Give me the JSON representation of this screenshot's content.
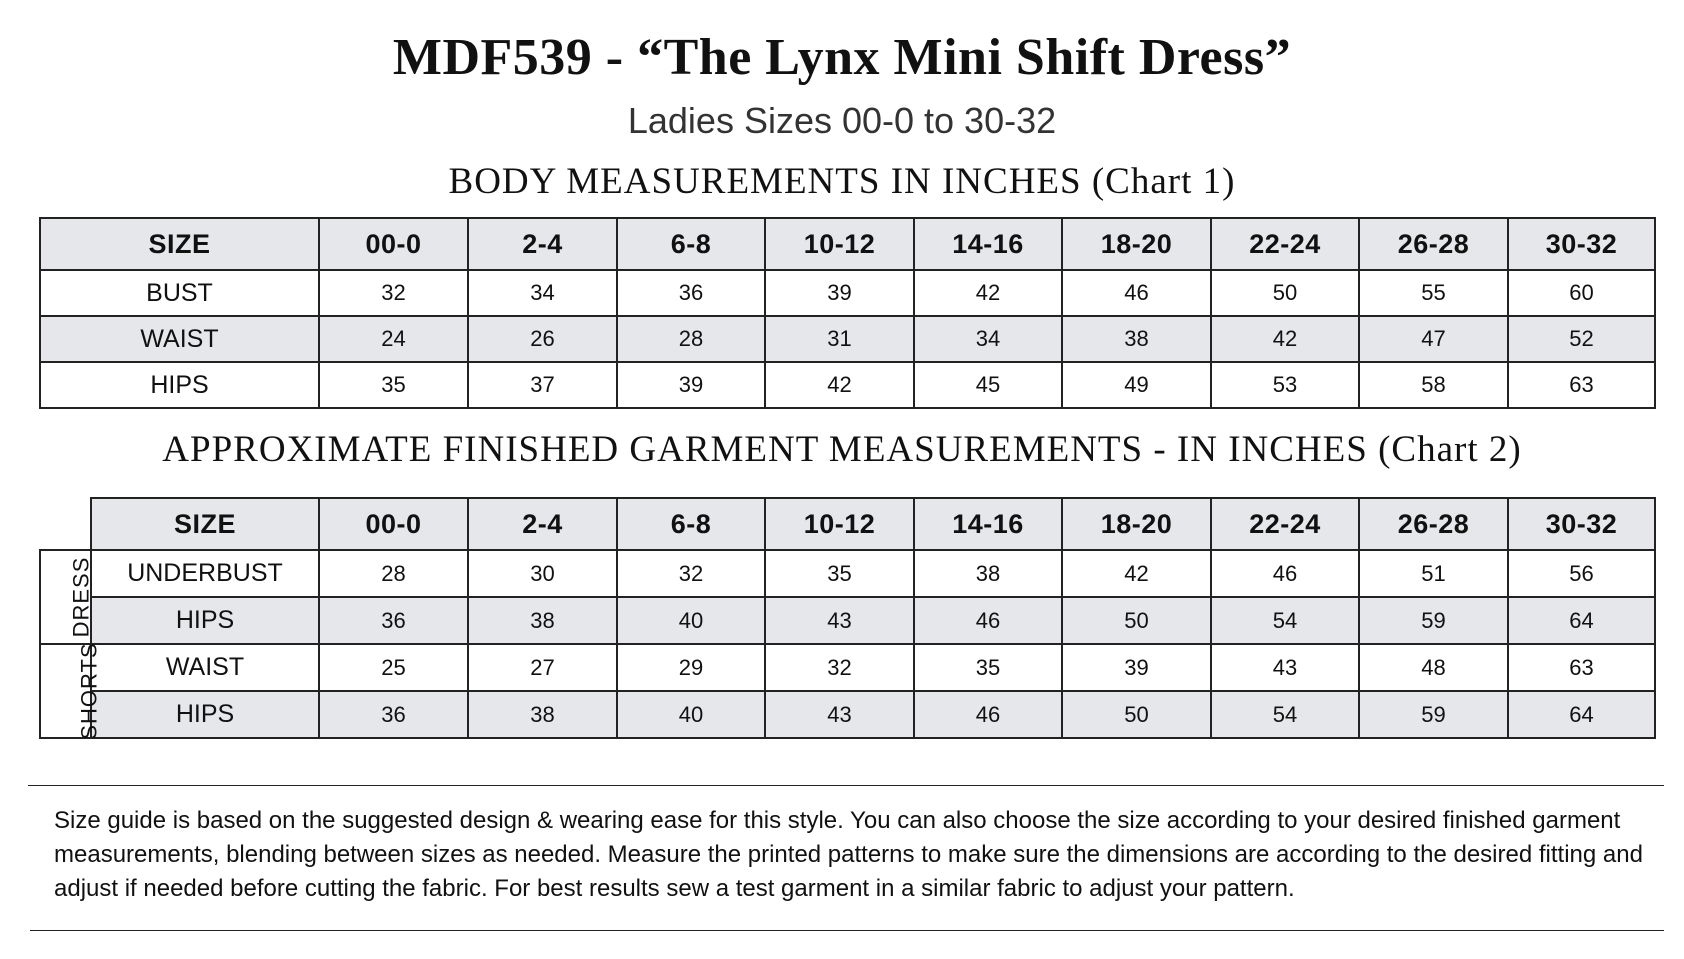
{
  "title": "MDF539 - “The Lynx Mini Shift Dress”",
  "subtitle": "Ladies Sizes 00-0  to  30-32",
  "chart1": {
    "heading": "BODY MEASUREMENTS IN INCHES (Chart 1)",
    "header": [
      "SIZE",
      "00-0",
      "2-4",
      "6-8",
      "10-12",
      "14-16",
      "18-20",
      "22-24",
      "26-28",
      "30-32"
    ],
    "rows": [
      {
        "label": "BUST",
        "values": [
          "32",
          "34",
          "36",
          "39",
          "42",
          "46",
          "50",
          "55",
          "60"
        ]
      },
      {
        "label": "WAIST",
        "values": [
          "24",
          "26",
          "28",
          "31",
          "34",
          "38",
          "42",
          "47",
          "52"
        ]
      },
      {
        "label": "HIPS",
        "values": [
          "35",
          "37",
          "39",
          "42",
          "45",
          "49",
          "53",
          "58",
          "63"
        ]
      }
    ]
  },
  "chart2": {
    "heading": "APPROXIMATE FINISHED GARMENT MEASUREMENTS - IN INCHES (Chart 2)",
    "header": [
      "SIZE",
      "00-0",
      "2-4",
      "6-8",
      "10-12",
      "14-16",
      "18-20",
      "22-24",
      "26-28",
      "30-32"
    ],
    "groups": [
      {
        "name": "DRESS",
        "rows": [
          {
            "label": "UNDERBUST",
            "values": [
              "28",
              "30",
              "32",
              "35",
              "38",
              "42",
              "46",
              "51",
              "56"
            ]
          },
          {
            "label": "HIPS",
            "values": [
              "36",
              "38",
              "40",
              "43",
              "46",
              "50",
              "54",
              "59",
              "64"
            ]
          }
        ]
      },
      {
        "name": "SHORTS",
        "rows": [
          {
            "label": "WAIST",
            "values": [
              "25",
              "27",
              "29",
              "32",
              "35",
              "39",
              "43",
              "48",
              "63"
            ]
          },
          {
            "label": "HIPS",
            "values": [
              "36",
              "38",
              "40",
              "43",
              "46",
              "50",
              "54",
              "59",
              "64"
            ]
          }
        ]
      }
    ]
  },
  "note": "Size guide is based on the suggested design & wearing ease for this style.  You can also choose the size according to your desired finished garment measurements, blending between sizes as needed. Measure the printed patterns to make sure the dimensions are according to the desired fitting and adjust if needed before cutting the fabric. For best results sew a test garment in a similar fabric to adjust your pattern.",
  "colors": {
    "header_fill": "#e6e7eb",
    "border": "#222222"
  }
}
